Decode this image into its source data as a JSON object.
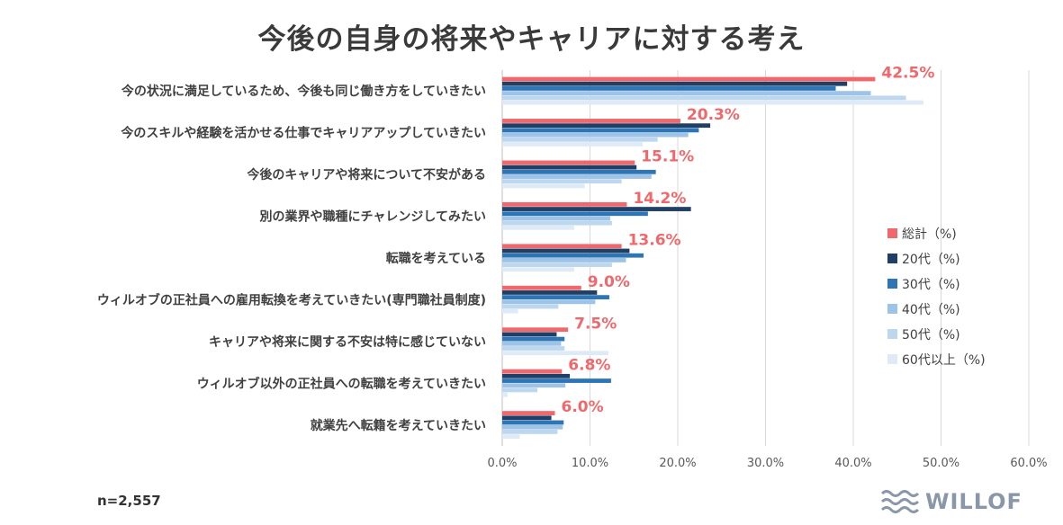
{
  "chart_data": {
    "type": "bar",
    "orientation": "horizontal",
    "title": "今後の自身の将来やキャリアに対する考え",
    "categories": [
      "今の状況に満足しているため、今後も同じ働き方をしていきたい",
      "今のスキルや経験を活かせる仕事でキャリアアップしていきたい",
      "今後のキャリアや将来について不安がある",
      "別の業界や職種にチャレンジしてみたい",
      "転職を考えている",
      "ウィルオブの正社員への雇用転換を考えていきたい(専門職社員制度)",
      "キャリアや将来に関する不安は特に感じていない",
      "ウィルオブ以外の正社員への転職を考えていきたい",
      "就業先へ転籍を考えていきたい"
    ],
    "series": [
      {
        "name": "総計（%)",
        "color": "#f0686b",
        "values": [
          42.5,
          20.3,
          15.1,
          14.2,
          13.6,
          9.0,
          7.5,
          6.8,
          6.0
        ]
      },
      {
        "name": "20代（%)",
        "color": "#1f3f66",
        "values": [
          39.3,
          23.7,
          15.3,
          21.5,
          14.5,
          10.8,
          6.2,
          7.7,
          5.6
        ]
      },
      {
        "name": "30代（%)",
        "color": "#2e75b6",
        "values": [
          38.0,
          22.4,
          17.5,
          16.6,
          16.1,
          12.2,
          7.1,
          12.4,
          7.0
        ]
      },
      {
        "name": "40代（%)",
        "color": "#9dc3e6",
        "values": [
          42.0,
          21.2,
          17.0,
          12.3,
          14.1,
          10.6,
          6.7,
          7.2,
          6.9
        ]
      },
      {
        "name": "50代（%)",
        "color": "#bdd7ee",
        "values": [
          46.0,
          17.7,
          13.6,
          12.5,
          12.5,
          6.4,
          7.1,
          4.0,
          6.3
        ]
      },
      {
        "name": "60代以上（%)",
        "color": "#deebf7",
        "values": [
          48.0,
          16.0,
          9.4,
          8.2,
          8.2,
          1.8,
          12.1,
          0.6,
          2.0
        ]
      }
    ],
    "data_labels": [
      "42.5%",
      "20.3%",
      "15.1%",
      "14.2%",
      "13.6%",
      "9.0%",
      "7.5%",
      "6.8%",
      "6.0%"
    ],
    "xlim": [
      0,
      60
    ],
    "x_ticks": [
      "0.0%",
      "10.0%",
      "20.0%",
      "30.0%",
      "40.0%",
      "50.0%",
      "60.0%"
    ],
    "grid": true,
    "legend_position": "right"
  },
  "footnote": "n=2,557",
  "logo": {
    "text": "WILLOF",
    "color": "#8a97a8"
  }
}
